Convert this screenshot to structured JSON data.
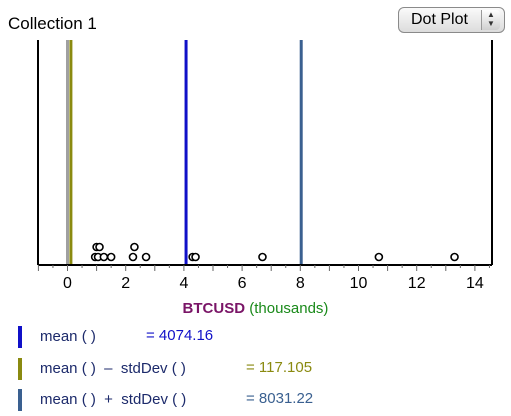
{
  "collection": {
    "title": "Collection 1"
  },
  "plot_type": {
    "selected": "Dot Plot",
    "arrows_icon": "up-down-arrows-icon"
  },
  "axis": {
    "attribute": "BTCUSD",
    "unit": "(thousands)",
    "ticks": [
      "0",
      "2",
      "4",
      "6",
      "8",
      "10",
      "12",
      "14"
    ],
    "attribute_color": "#7a1567",
    "unit_color": "#1a8a1a"
  },
  "legend": [
    {
      "formula": "mean ( )",
      "value": "= 4074.16",
      "color": "#1010c8",
      "value_color": "#1010c8"
    },
    {
      "formula": "mean ( )  –  stdDev ( )",
      "value": "= 117.105",
      "color": "#8a8a10",
      "value_color": "#8a8a10"
    },
    {
      "formula": "mean ( )  +  stdDev ( )",
      "value": "= 8031.22",
      "color": "#3a6090",
      "value_color": "#3a6090"
    }
  ],
  "chart_data": {
    "type": "scatter",
    "title": "",
    "xlabel": "BTCUSD (thousands)",
    "ylabel": "",
    "xlim": [
      -1,
      15
    ],
    "grid": false,
    "points": [
      {
        "x": 0.95,
        "stack": 1
      },
      {
        "x": 1.05,
        "stack": 1
      },
      {
        "x": 1.0,
        "stack": 2
      },
      {
        "x": 1.1,
        "stack": 2
      },
      {
        "x": 1.25,
        "stack": 1
      },
      {
        "x": 1.5,
        "stack": 1
      },
      {
        "x": 2.25,
        "stack": 1
      },
      {
        "x": 2.3,
        "stack": 2
      },
      {
        "x": 2.7,
        "stack": 1
      },
      {
        "x": 4.3,
        "stack": 1
      },
      {
        "x": 4.4,
        "stack": 1
      },
      {
        "x": 6.7,
        "stack": 1
      },
      {
        "x": 10.7,
        "stack": 1
      },
      {
        "x": 13.3,
        "stack": 1
      }
    ],
    "reference_lines": [
      {
        "name": "mean",
        "x": 4.07416,
        "color": "#1010c8"
      },
      {
        "name": "mean - stdDev",
        "x": 0.117105,
        "color": "#8a8a10"
      },
      {
        "name": "mean + stdDev",
        "x": 8.03122,
        "color": "#3a6090"
      },
      {
        "name": "zero",
        "x": 0,
        "color": "#a0a0a0"
      }
    ]
  }
}
